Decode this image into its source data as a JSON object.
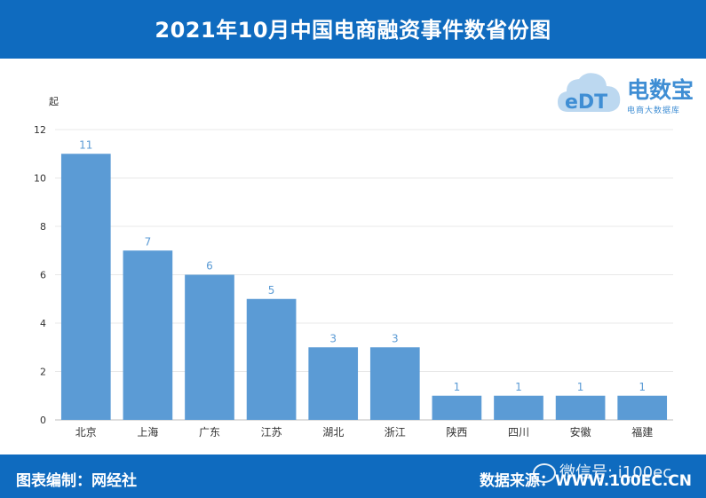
{
  "header": {
    "title": "2021年10月中国电商融资事件数省份图"
  },
  "footer": {
    "credit": "图表编制：网经社",
    "source": "数据来源：WWW.100EC.CN",
    "watermark": "微信号: i100ec"
  },
  "logo": {
    "brand": "电数宝",
    "tagline": "电商大数据库",
    "mark": "eDT"
  },
  "colors": {
    "bar": "#5b9bd5",
    "label": "#5b9bd5",
    "header": "#0f6bbf"
  },
  "chart_data": {
    "type": "bar",
    "title": "",
    "ylabel": "起",
    "xlabel": "",
    "ylim": [
      0,
      12
    ],
    "yticks": [
      0,
      2,
      4,
      6,
      8,
      10,
      12
    ],
    "categories": [
      "北京",
      "上海",
      "广东",
      "江苏",
      "湖北",
      "浙江",
      "陕西",
      "四川",
      "安徽",
      "福建"
    ],
    "values": [
      11,
      7,
      6,
      5,
      3,
      3,
      1,
      1,
      1,
      1
    ],
    "grid": true,
    "legend": "none"
  }
}
